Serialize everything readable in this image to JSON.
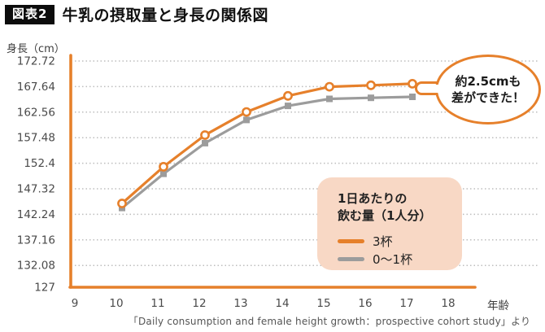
{
  "header": {
    "tag": "図表2",
    "title": "牛乳の摂取量と身長の関係図"
  },
  "axis_labels": {
    "y": "身長（cm）",
    "x": "年齢"
  },
  "chart_data": {
    "type": "line",
    "title": "牛乳の摂取量と身長の関係図",
    "xlabel": "年齢",
    "ylabel": "身長（cm）",
    "x": [
      10,
      11,
      12,
      13,
      14,
      15,
      16,
      17
    ],
    "series": [
      {
        "name": "3杯",
        "color": "#E6802B",
        "marker": "circle",
        "values": [
          144.4,
          151.7,
          158.0,
          162.6,
          165.8,
          167.6,
          167.9,
          168.2
        ]
      },
      {
        "name": "0〜1杯",
        "color": "#9C9C9C",
        "marker": "square",
        "values": [
          143.5,
          150.3,
          156.4,
          161.0,
          163.8,
          165.2,
          165.4,
          165.6
        ]
      }
    ],
    "x_ticks": [
      9,
      10,
      11,
      12,
      13,
      14,
      15,
      16,
      17,
      18
    ],
    "y_ticks": [
      127,
      132.08,
      137.16,
      142.24,
      147.32,
      152.4,
      157.48,
      162.56,
      167.64,
      172.72
    ],
    "xlim": [
      9,
      18
    ],
    "ylim": [
      127,
      172.72
    ],
    "grid": "horizontal-dotted",
    "legend_position": "inside lower-right",
    "annotation": "約2.5cmも差ができた！"
  },
  "legend": {
    "title_line1": "1日あたりの",
    "title_line2": "飲む量（1人分）",
    "items": [
      {
        "label": "3杯",
        "color": "#E6802B"
      },
      {
        "label": "0〜1杯",
        "color": "#9C9C9C"
      }
    ]
  },
  "annotation": {
    "line1": "約2.5cmも",
    "line2": "差ができた！"
  },
  "source": "「Daily consumption and female height growth：prospective cohort study」より",
  "colors": {
    "accent_orange": "#E6802B",
    "series_gray": "#9C9C9C",
    "legend_bg": "#F8D8C5",
    "grid": "#BEBEBE",
    "tick_text": "#4A4A4A",
    "text": "#1A1A1A",
    "tag_bg": "#0C0C0C"
  }
}
